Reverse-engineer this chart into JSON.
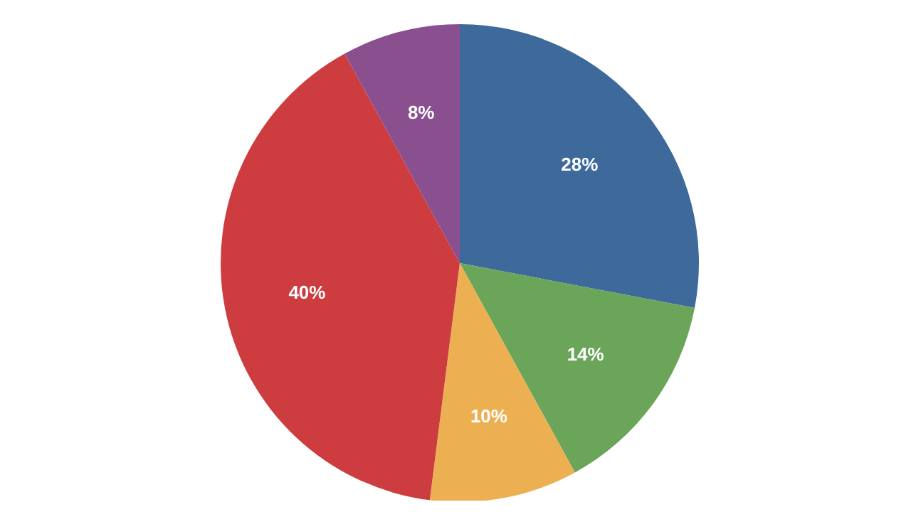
{
  "chart_data": {
    "type": "pie",
    "categories": [
      null,
      null,
      null,
      null,
      null
    ],
    "values": [
      28,
      14,
      10,
      40,
      8
    ],
    "colors": [
      "#3d6a9b",
      "#6aa55a",
      "#ecb052",
      "#cd3d3f",
      "#8a4f8f"
    ],
    "value_labels": [
      "28%",
      "14%",
      "10%",
      "40%",
      "8%"
    ],
    "legend": false
  }
}
